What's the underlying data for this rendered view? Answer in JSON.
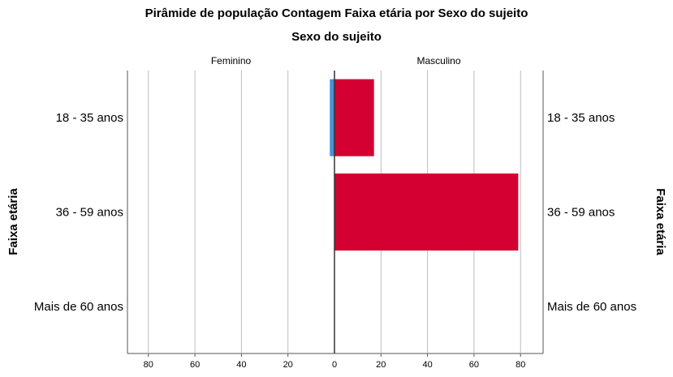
{
  "title": "Pirâmide de população Contagem Faixa etária  por Sexo do sujeito",
  "legend_title": "Sexo do sujeito",
  "chart_data": {
    "type": "bar",
    "orientation": "population-pyramid",
    "title": "Pirâmide de população Contagem Faixa etária  por Sexo do sujeito",
    "panel_title": "Sexo do sujeito",
    "ylabel": "Faixa etária",
    "categories": [
      "18 - 35 anos",
      "36 - 59 anos",
      "Mais de 60 anos"
    ],
    "series": [
      {
        "name": "Feminino",
        "side": "left",
        "color": "#4a90d9",
        "values": [
          2,
          0,
          0
        ]
      },
      {
        "name": "Masculino",
        "side": "right",
        "color": "#d50032",
        "values": [
          17,
          79,
          0
        ]
      }
    ],
    "xlim": [
      0,
      89
    ],
    "xticks": [
      0,
      20,
      40,
      60,
      80
    ],
    "grid": true
  }
}
